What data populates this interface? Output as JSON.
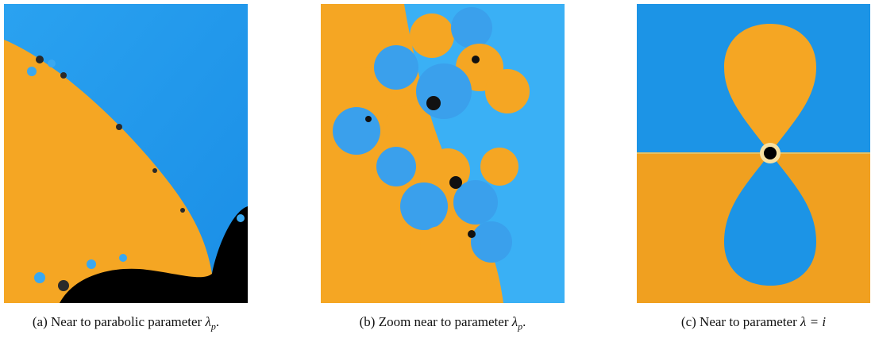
{
  "figures": [
    {
      "caption": "(a) Near to parabolic parameter",
      "symbol": "λ",
      "subscript": "p",
      "end": "."
    },
    {
      "caption": "(b) Zoom near to parameter",
      "symbol": "λ",
      "subscript": "p",
      "end": "."
    },
    {
      "caption": "(c) Near to parameter",
      "symbol": "λ = i"
    }
  ]
}
